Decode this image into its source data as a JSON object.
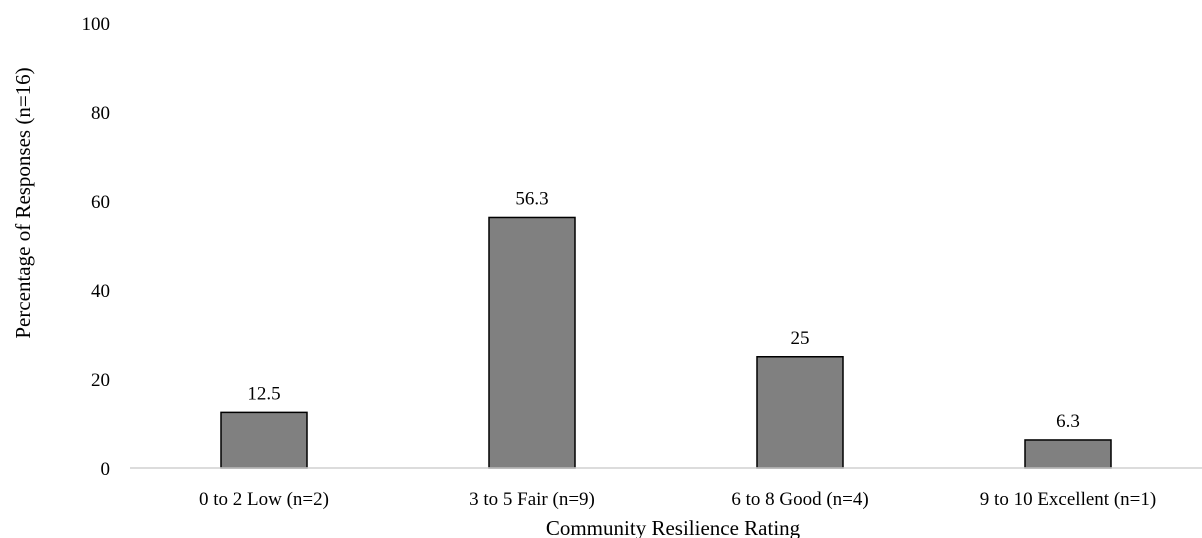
{
  "chart_data": {
    "type": "bar",
    "categories": [
      "0 to 2 Low (n=2)",
      "3 to 5 Fair (n=9)",
      "6 to 8 Good (n=4)",
      "9 to 10 Excellent (n=1)"
    ],
    "values": [
      12.5,
      56.3,
      25,
      6.3
    ],
    "data_labels": [
      "12.5",
      "56.3",
      "25",
      "6.3"
    ],
    "yticks": [
      "0",
      "20",
      "40",
      "60",
      "80",
      "100"
    ],
    "xlabel": "Community Resilience Rating",
    "ylabel": "Percentage of Responses (n=16)",
    "ylim": [
      0,
      100
    ],
    "grid": false,
    "bar_color": "#808080",
    "bar_edge_color": "#000000",
    "axis_line_color": "#d0d0d0"
  }
}
